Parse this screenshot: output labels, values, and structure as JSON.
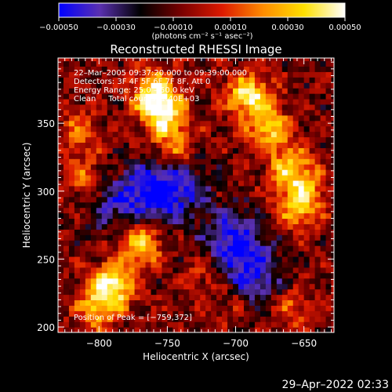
{
  "chart_data": {
    "type": "heatmap",
    "title": "Reconstructed RHESSI Image",
    "xlabel": "Heliocentric X (arcsec)",
    "ylabel": "Heliocentric Y (arcsec)",
    "xlim": [
      -830,
      -628
    ],
    "ylim": [
      196,
      398
    ],
    "x_ticks": [
      -800,
      -750,
      -700,
      -650
    ],
    "x_tick_labels": [
      "−800",
      "−750",
      "−700",
      "−650"
    ],
    "y_ticks": [
      200,
      250,
      300,
      350
    ],
    "y_tick_labels": [
      "200",
      "250",
      "300",
      "350"
    ],
    "colorbar": {
      "range": [
        -0.0005,
        0.0005
      ],
      "ticks": [
        -0.0005,
        -0.0003,
        -0.0001,
        0.0001,
        0.0003,
        0.0005
      ],
      "tick_labels": [
        "−0.00050",
        "−0.00030",
        "−0.00010",
        "0.00010",
        "0.00030",
        "0.00050"
      ],
      "units_label": "(photons cm⁻² s⁻¹ asec⁻²)",
      "colormap_stops": [
        "#0000ff",
        "#5a30b0",
        "#000000",
        "#7a0000",
        "#dd1a00",
        "#ff8c00",
        "#ffe000",
        "#ffffff"
      ]
    },
    "annotations": [
      "22–Mar–2005 09:37:20.000 to 09:39:00.000",
      "Detectors: 3F 4F 5F 6F 7F 8F, Att 0",
      "Energy Range: 25.0 – 50.0 keV",
      "Clean     Total counts: 1.40E+03"
    ],
    "peak_label": "Position of Peak = [−759,372]",
    "peak": {
      "x": -759,
      "y": 372
    },
    "bright_regions": [
      {
        "x": -790,
        "y": 232,
        "level": 0.9
      },
      {
        "x": -770,
        "y": 262,
        "level": 0.85
      },
      {
        "x": -800,
        "y": 215,
        "level": 0.7
      },
      {
        "x": -759,
        "y": 372,
        "level": 1.0
      },
      {
        "x": -752,
        "y": 355,
        "level": 0.8
      },
      {
        "x": -745,
        "y": 330,
        "level": 0.55
      },
      {
        "x": -690,
        "y": 370,
        "level": 0.95
      },
      {
        "x": -675,
        "y": 345,
        "level": 0.75
      },
      {
        "x": -660,
        "y": 318,
        "level": 0.7
      },
      {
        "x": -650,
        "y": 300,
        "level": 0.6
      },
      {
        "x": -655,
        "y": 285,
        "level": 0.5
      },
      {
        "x": -812,
        "y": 310,
        "level": 0.45
      },
      {
        "x": -815,
        "y": 345,
        "level": 0.4
      },
      {
        "x": -720,
        "y": 240,
        "level": 0.35
      },
      {
        "x": -700,
        "y": 220,
        "level": 0.45
      },
      {
        "x": -660,
        "y": 215,
        "level": 0.4
      }
    ],
    "dim_regions": [
      {
        "x": -760,
        "y": 300,
        "level": 0.8
      },
      {
        "x": -700,
        "y": 262,
        "level": 0.9
      },
      {
        "x": -690,
        "y": 232,
        "level": 0.8
      },
      {
        "x": -740,
        "y": 305,
        "level": 0.6
      },
      {
        "x": -790,
        "y": 290,
        "level": 0.5
      }
    ]
  },
  "footer": {
    "timestamp": "29–Apr–2022 02:33"
  }
}
